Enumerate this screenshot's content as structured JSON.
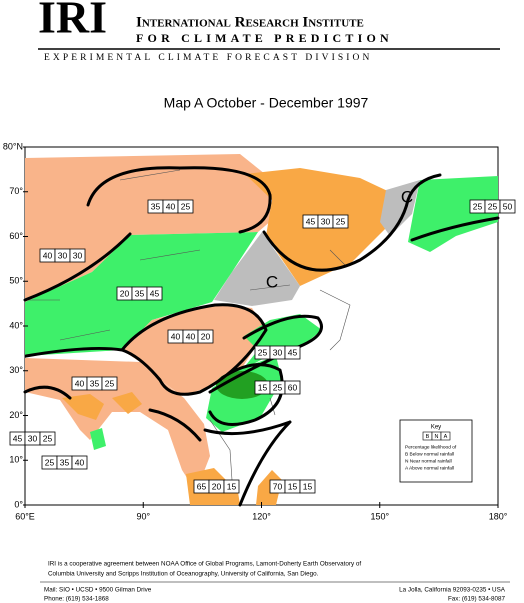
{
  "header": {
    "logo": "IRI",
    "line1": "International Research Institute",
    "line2": "FOR CLIMATE PREDICTION",
    "division": "EXPERIMENTAL CLIMATE FORECAST DIVISION"
  },
  "map": {
    "title": "Map A  October - December  1997",
    "lat_labels": [
      "80°N",
      "70°",
      "60°",
      "50°",
      "40°",
      "30°",
      "20°",
      "10°",
      "0°"
    ],
    "lon_labels": [
      "60°E",
      "90°",
      "120°",
      "150°",
      "180°"
    ],
    "region_labels": [
      "C",
      "C"
    ],
    "forecasts": [
      {
        "values": [
          35,
          40,
          25
        ]
      },
      {
        "values": [
          45,
          30,
          25
        ]
      },
      {
        "values": [
          25,
          25,
          50
        ]
      },
      {
        "values": [
          40,
          30,
          30
        ]
      },
      {
        "values": [
          20,
          35,
          45
        ]
      },
      {
        "values": [
          40,
          40,
          20
        ]
      },
      {
        "values": [
          25,
          30,
          45
        ]
      },
      {
        "values": [
          15,
          25,
          60
        ]
      },
      {
        "values": [
          40,
          35,
          25
        ]
      },
      {
        "values": [
          45,
          30,
          25
        ]
      },
      {
        "values": [
          25,
          35,
          40
        ]
      },
      {
        "values": [
          65,
          20,
          15
        ]
      },
      {
        "values": [
          70,
          15,
          15
        ]
      }
    ],
    "key": {
      "title": "Key",
      "cells": [
        "B",
        "N",
        "A"
      ],
      "lines": [
        "Percentage likelihood of",
        "B Below normal rainfall",
        "N Near normal rainfall",
        "A Above normal rainfall"
      ]
    }
  },
  "footer": {
    "note1": "IRI is a cooperative agreement between NOAA Office of Global Programs, Lamont-Doherty Earth Observatory of",
    "note2": "Columbia University and Scripps Institution of Oceanography, University of California, San Diego.",
    "mail": "Mail: SIO • UCSD • 9500 Gilman Drive",
    "city": "La Jolla, California 92093-0235 • USA",
    "phone": "Phone: (619) 534-1868",
    "fax": "Fax: (619) 534-8087"
  }
}
